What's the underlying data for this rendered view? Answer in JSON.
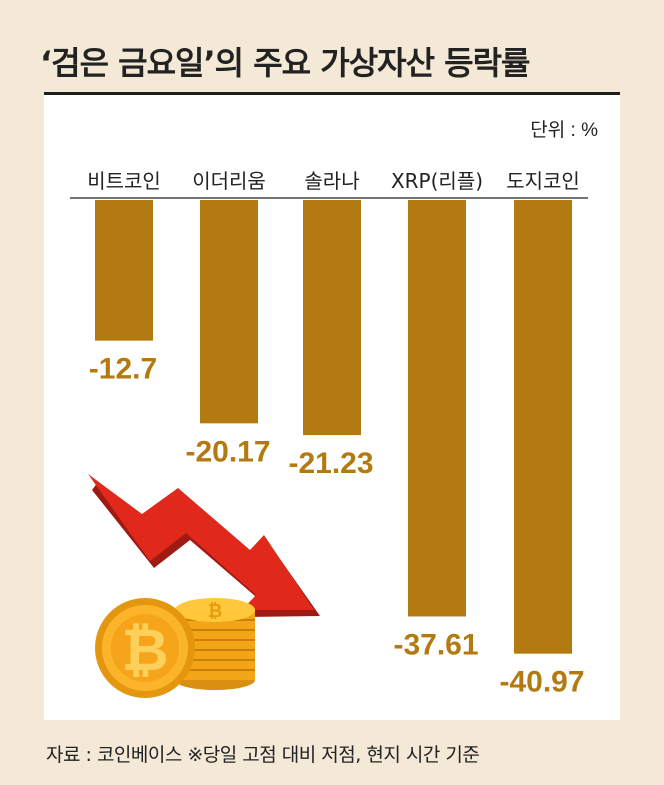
{
  "title": "‘검은 금요일’의 주요 가상자산 등락률",
  "source_note": "자료 : 코인베이스 ※당일 고점 대비 저점, 현지 시간 기준",
  "colors": {
    "bar": "#b37a12",
    "label": "#b37a12",
    "background": "#f4e8d6",
    "panel": "#ffffff",
    "arrow": "#e0291b"
  },
  "chart_data": {
    "type": "bar",
    "title": "‘검은 금요일’의 주요 가상자산 등락률",
    "unit_label": "단위 : %",
    "categories": [
      "비트코인",
      "이더리움",
      "솔라나",
      "XRP(리플)",
      "도지코인"
    ],
    "values": [
      -12.7,
      -20.17,
      -21.23,
      -37.61,
      -40.97
    ],
    "value_labels": [
      "-12.7",
      "-20.17",
      "-21.23",
      "-37.61",
      "-40.97"
    ],
    "ylim": [
      -42,
      0
    ],
    "grid": false,
    "legend": "none"
  }
}
